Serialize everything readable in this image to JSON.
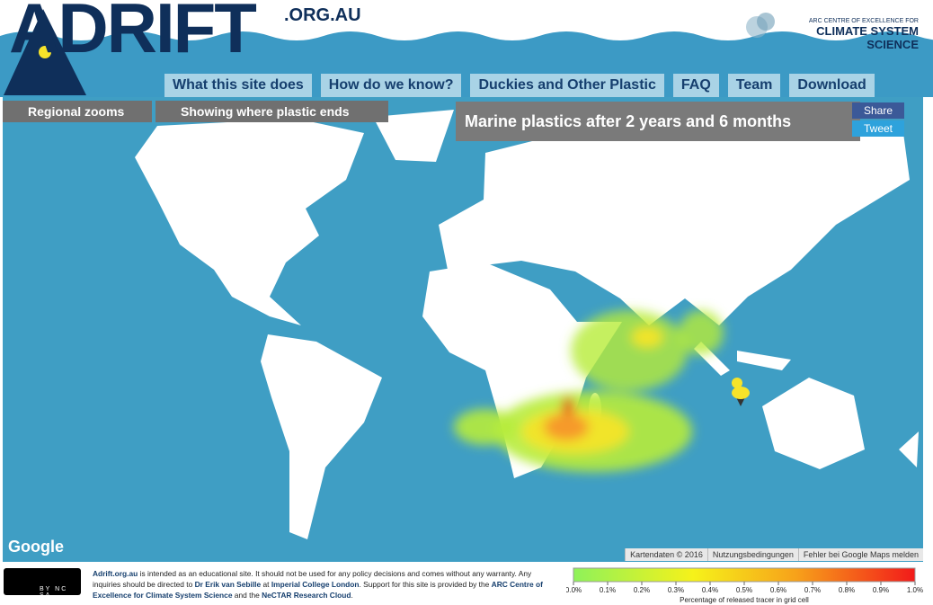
{
  "header": {
    "logo": "ADRIFT",
    "domain": ".ORG.AU",
    "partner_line1": "ARC CENTRE OF EXCELLENCE FOR",
    "partner_line2": "CLIMATE SYSTEM SCIENCE"
  },
  "nav": [
    "What this site does",
    "How do we know?",
    "Duckies and Other Plastic",
    "FAQ",
    "Team",
    "Download"
  ],
  "controls": [
    "Regional zooms",
    "Showing where plastic ends"
  ],
  "map": {
    "title": "Marine plastics after 2 years and 6 months",
    "share": "Share",
    "tweet": "Tweet",
    "google": "Google",
    "attribution": [
      "Kartendaten © 2016",
      "Nutzungsbedingungen",
      "Fehler bei Google Maps melden"
    ]
  },
  "footer": {
    "license": "BY NC SA",
    "segments": [
      "Adrift.org.au",
      " is intended as an educational site. It should not be used for any policy decisions and comes without any warranty. Any inquiries should be directed to ",
      "Dr Erik van Sebille",
      " at ",
      "Imperial College London",
      ". Support for this site is provided by the ",
      "ARC Centre of Excellence for Climate System Science",
      " and the ",
      "NeCTAR Research Cloud",
      "."
    ]
  },
  "legend": {
    "label": "Percentage of released tracer in grid cell",
    "lim": [
      0,
      1
    ],
    "ticks": [
      {
        "value": 0,
        "label": "0.0%"
      },
      {
        "value": 0.1,
        "label": "0.1%"
      },
      {
        "value": 0.2,
        "label": "0.2%"
      },
      {
        "value": 0.3,
        "label": "0.3%"
      },
      {
        "value": 0.4,
        "label": "0.4%"
      },
      {
        "value": 0.5,
        "label": "0.5%"
      },
      {
        "value": 0.6,
        "label": "0.6%"
      },
      {
        "value": 0.7,
        "label": "0.7%"
      },
      {
        "value": 0.8,
        "label": "0.8%"
      },
      {
        "value": 0.9,
        "label": "0.9%"
      },
      {
        "value": 1,
        "label": "1.0%"
      }
    ]
  }
}
